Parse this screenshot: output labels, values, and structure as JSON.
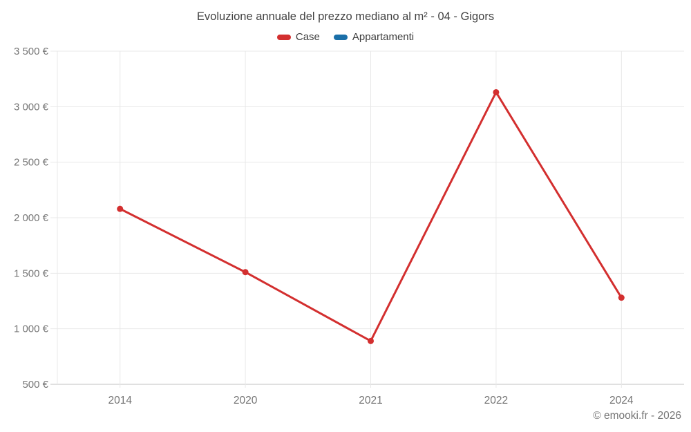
{
  "chart_data": {
    "type": "line",
    "title": "Evoluzione annuale del prezzo mediano al m² - 04 - Gigors",
    "categories": [
      "2014",
      "2020",
      "2021",
      "2022",
      "2024"
    ],
    "series": [
      {
        "name": "Case",
        "color": "#d32f2f",
        "values": [
          2080,
          1510,
          890,
          3130,
          1280
        ]
      },
      {
        "name": "Appartamenti",
        "color": "#1a6fa8",
        "values": []
      }
    ],
    "ylim": [
      500,
      3500
    ],
    "ytick_step": 500,
    "y_unit": "€",
    "y_tick_labels": [
      "500 €",
      "1 000 €",
      "1 500 €",
      "2 000 €",
      "2 500 €",
      "3 000 €",
      "3 500 €"
    ],
    "grid": true,
    "legend_position": "top"
  },
  "footer": {
    "copyright": "© emooki.fr - 2026"
  }
}
